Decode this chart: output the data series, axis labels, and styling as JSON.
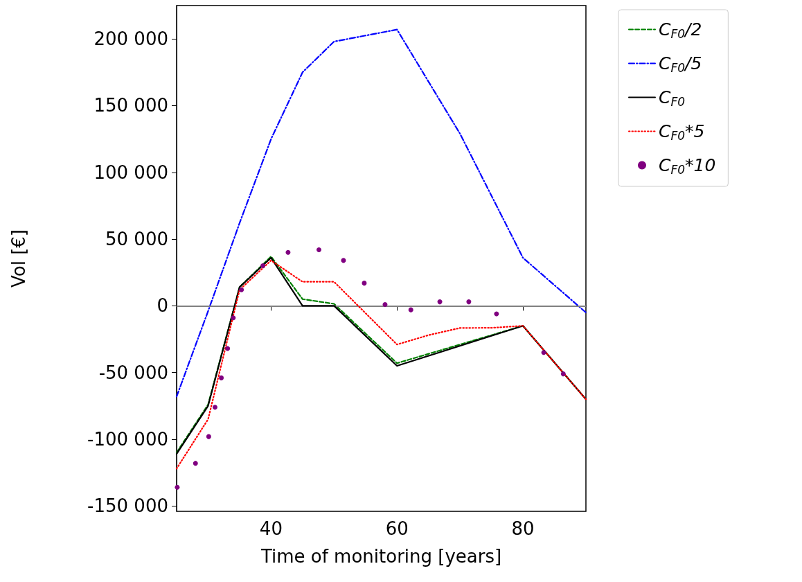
{
  "chart_data": {
    "type": "line",
    "xlabel": "Time of monitoring [years]",
    "ylabel": "Vol [€]",
    "x": [
      25,
      30,
      35,
      40,
      45,
      50,
      60,
      65,
      70,
      75,
      80,
      90
    ],
    "series": [
      {
        "name": "C$_{F0}$/2",
        "color": "#008000",
        "line_style": "dashed",
        "values": [
          -110000,
          -74000,
          14000,
          37000,
          5000,
          1500,
          -43000,
          null,
          null,
          null,
          -15000,
          -70000
        ]
      },
      {
        "name": "C$_{F0}$/5",
        "color": "#0000ff",
        "line_style": "dashdot",
        "values": [
          -68000,
          -4000,
          62000,
          125000,
          175000,
          198000,
          207000,
          null,
          129000,
          null,
          36000,
          -5000
        ]
      },
      {
        "name": "C$_{F0}$",
        "color": "#000000",
        "line_style": "solid",
        "values": [
          -111000,
          -75000,
          14000,
          36000,
          0,
          0,
          -45000,
          null,
          null,
          null,
          -15000,
          -70000
        ]
      },
      {
        "name": "C$_{F0}$*5",
        "color": "#ff0000",
        "line_style": "dotted",
        "values": [
          -122000,
          -85000,
          12000,
          34000,
          18000,
          18000,
          -29000,
          -22000,
          -16600,
          -16500,
          -15000,
          -70000
        ]
      },
      {
        "name": "C$_{F0}$*10",
        "color": "#800080",
        "type": "scatter",
        "marker": "circle",
        "x": [
          25.1,
          28.0,
          30.1,
          31.1,
          32.1,
          33.1,
          34.0,
          35.3,
          38.7,
          42.7,
          47.6,
          51.5,
          54.8,
          58.1,
          62.2,
          66.8,
          71.4,
          75.8,
          83.3,
          86.4
        ],
        "values": [
          -136000,
          -118000,
          -98000,
          -76000,
          -54000,
          -32000,
          -9000,
          12000,
          30000,
          40000,
          42000,
          34000,
          17000,
          1000,
          -3000,
          3000,
          3000,
          -6000,
          -35000,
          -51000
        ]
      }
    ],
    "xlim": [
      25,
      90
    ],
    "xticks": [
      40,
      60,
      80
    ],
    "ylim": [
      -154000,
      225000
    ],
    "yticks": [
      {
        "value": -150000,
        "label": "-150 000"
      },
      {
        "value": -100000,
        "label": "-100 000"
      },
      {
        "value": -50000,
        "label": "-50 000"
      },
      {
        "value": 0,
        "label": "0"
      },
      {
        "value": 50000,
        "label": "50 000"
      },
      {
        "value": 100000,
        "label": "100 000"
      },
      {
        "value": 150000,
        "label": "150 000"
      },
      {
        "value": 200000,
        "label": "200 000"
      }
    ],
    "ref_lines": [
      {
        "axis": "y",
        "value": 0,
        "color": "#808080"
      }
    ],
    "grid": false,
    "legend": "right",
    "marker": "none"
  }
}
